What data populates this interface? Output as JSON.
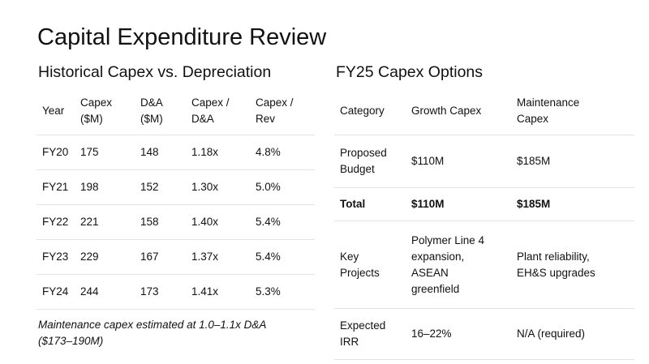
{
  "title": "Capital Expenditure Review",
  "historical": {
    "heading": "Historical Capex vs. Depreciation",
    "columns": [
      {
        "l1": "Year",
        "l2": ""
      },
      {
        "l1": "Capex",
        "l2": "($M)"
      },
      {
        "l1": "D&A",
        "l2": "($M)"
      },
      {
        "l1": "Capex /",
        "l2": "D&A"
      },
      {
        "l1": "Capex /",
        "l2": "Rev"
      }
    ],
    "rows": [
      [
        "FY20",
        "175",
        "148",
        "1.18x",
        "4.8%"
      ],
      [
        "FY21",
        "198",
        "152",
        "1.30x",
        "5.0%"
      ],
      [
        "FY22",
        "221",
        "158",
        "1.40x",
        "5.4%"
      ],
      [
        "FY23",
        "229",
        "167",
        "1.37x",
        "5.4%"
      ],
      [
        "FY24",
        "244",
        "173",
        "1.41x",
        "5.3%"
      ]
    ],
    "note_l1": "Maintenance capex estimated at 1.0–1.1x D&A",
    "note_l2": "($173–190M)"
  },
  "options": {
    "heading": "FY25 Capex Options",
    "header": {
      "category": "Category",
      "growth": "Growth Capex",
      "maint_l1": "Maintenance",
      "maint_l2": "Capex"
    },
    "budget": {
      "label_l1": "Proposed",
      "label_l2": "Budget",
      "growth": "$110M",
      "maint": "$185M"
    },
    "total": {
      "label": "Total",
      "growth": "$110M",
      "maint": "$185M"
    },
    "projects": {
      "label_l1": "Key",
      "label_l2": "Projects",
      "growth_l1": "Polymer Line 4",
      "growth_l2": "expansion,",
      "growth_l3": "ASEAN",
      "growth_l4": "greenfield",
      "maint_l1": "Plant reliability,",
      "maint_l2": "EH&S upgrades"
    },
    "irr": {
      "label_l1": "Expected",
      "label_l2": "IRR",
      "growth": "16–22%",
      "maint": "N/A (required)"
    }
  }
}
